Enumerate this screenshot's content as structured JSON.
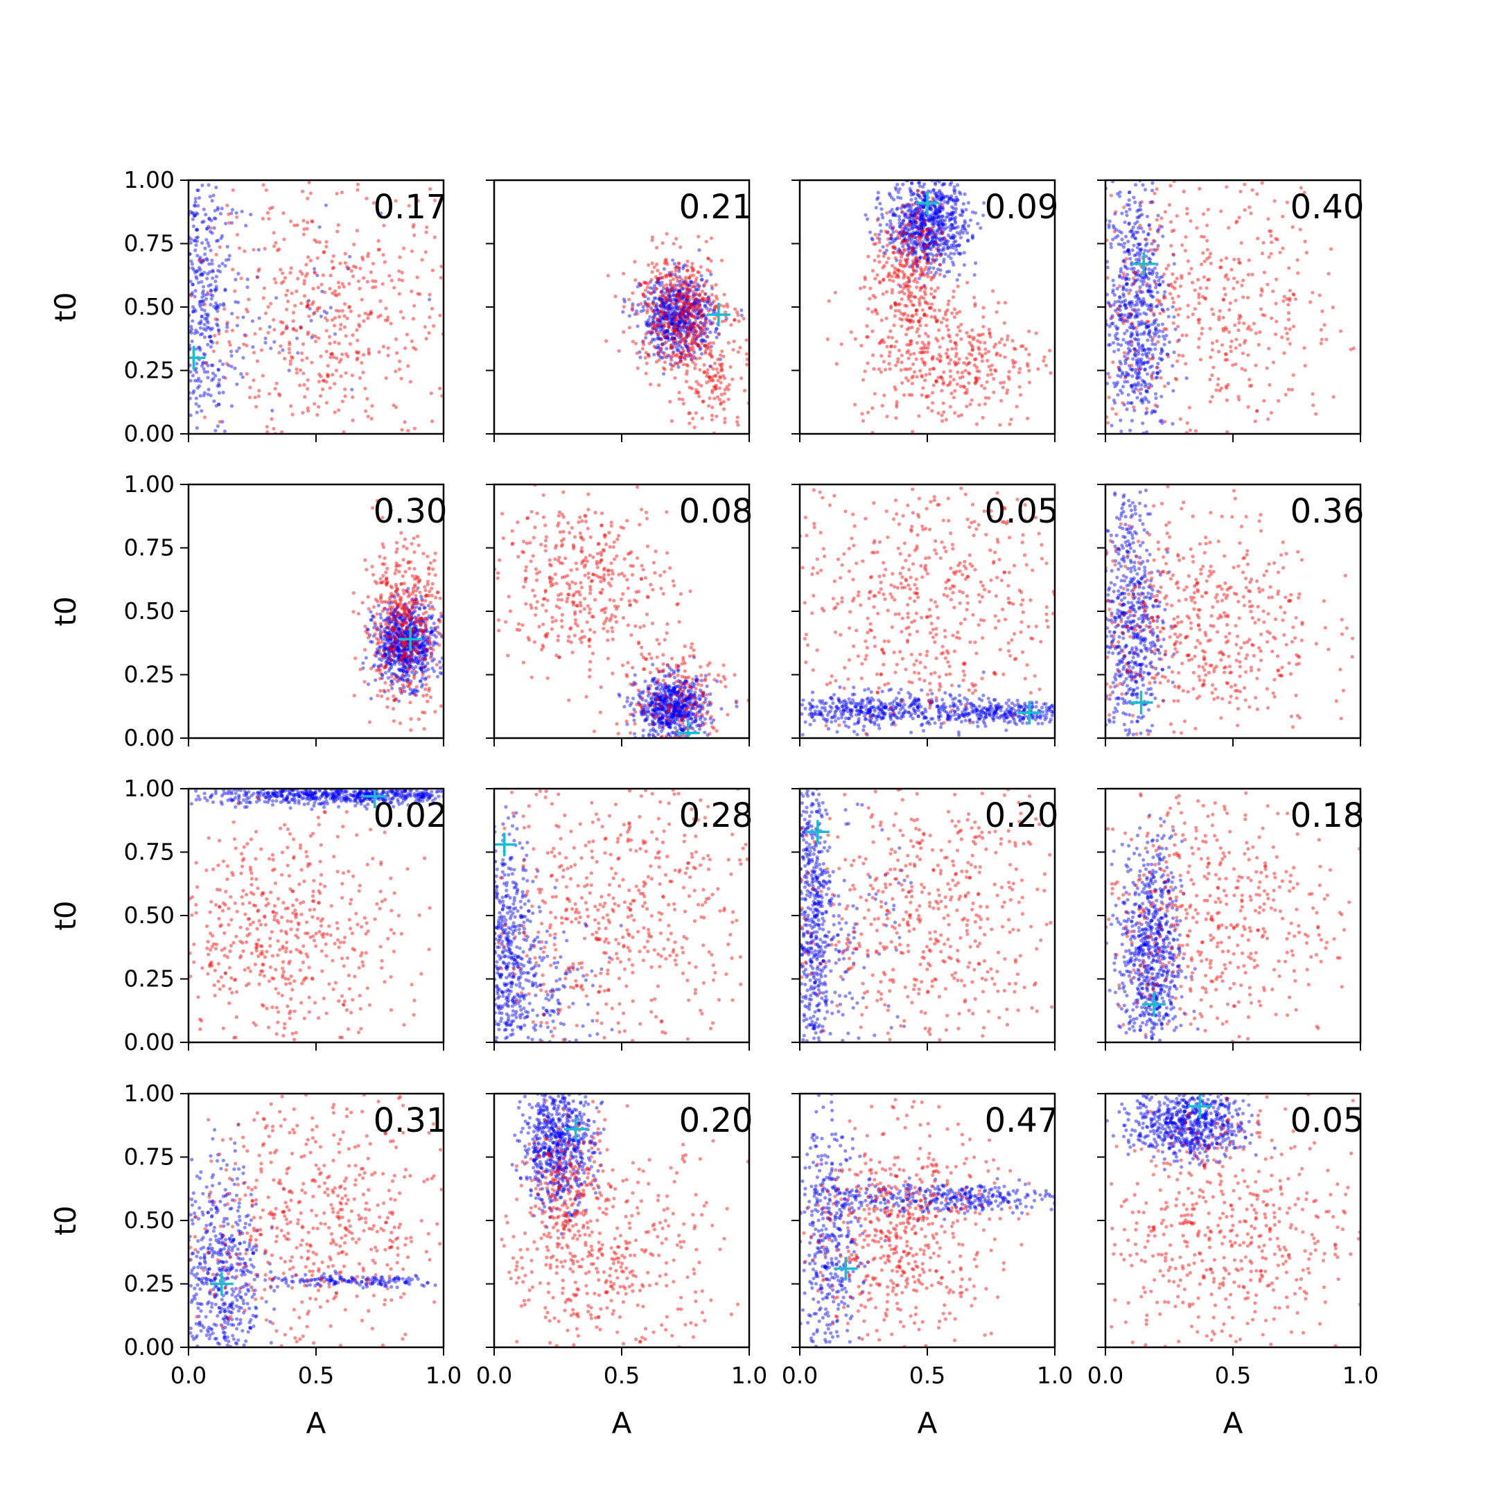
{
  "chart_data": {
    "type": "scatter",
    "layout": {
      "rows": 4,
      "cols": 4
    },
    "xlabel": "A",
    "ylabel": "t0",
    "xlim": [
      0,
      1
    ],
    "ylim": [
      0,
      1
    ],
    "x_ticks": [
      "0.0",
      "0.5",
      "1.0"
    ],
    "y_ticks": [
      "0.00",
      "0.25",
      "0.50",
      "0.75",
      "1.00"
    ],
    "x_tick_values": [
      0,
      0.5,
      1
    ],
    "y_tick_values": [
      0,
      0.25,
      0.5,
      0.75,
      1
    ],
    "colors": {
      "red_points": "#ff0000",
      "blue_points": "#0000ff",
      "marker": "#17becf",
      "axes": "#000000"
    },
    "panels": [
      {
        "label": "0.17",
        "marker": {
          "A": 0.02,
          "t0": 0.3
        },
        "blue": [
          {
            "cx": 0.05,
            "cy": 0.55,
            "sx": 0.06,
            "sy": 0.28,
            "n": 420
          },
          {
            "cx": 0.3,
            "cy": 0.45,
            "sx": 0.25,
            "sy": 0.25,
            "n": 60
          }
        ],
        "red": [
          {
            "cx": 0.55,
            "cy": 0.45,
            "sx": 0.26,
            "sy": 0.27,
            "n": 520
          }
        ]
      },
      {
        "label": "0.21",
        "marker": {
          "A": 0.88,
          "t0": 0.47
        },
        "blue": [
          {
            "cx": 0.72,
            "cy": 0.46,
            "sx": 0.07,
            "sy": 0.08,
            "n": 650
          }
        ],
        "red": [
          {
            "cx": 0.72,
            "cy": 0.48,
            "sx": 0.09,
            "sy": 0.12,
            "n": 450
          },
          {
            "cx": 0.88,
            "cy": 0.22,
            "sx": 0.08,
            "sy": 0.12,
            "n": 160
          }
        ]
      },
      {
        "label": "0.09",
        "marker": {
          "A": 0.5,
          "t0": 0.91
        },
        "blue": [
          {
            "cx": 0.5,
            "cy": 0.83,
            "sx": 0.08,
            "sy": 0.09,
            "n": 750
          }
        ],
        "red": [
          {
            "cx": 0.42,
            "cy": 0.62,
            "sx": 0.07,
            "sy": 0.14,
            "n": 300
          },
          {
            "cx": 0.58,
            "cy": 0.3,
            "sx": 0.18,
            "sy": 0.14,
            "n": 400
          }
        ]
      },
      {
        "label": "0.40",
        "marker": {
          "A": 0.15,
          "t0": 0.67
        },
        "blue": [
          {
            "cx": 0.12,
            "cy": 0.48,
            "sx": 0.06,
            "sy": 0.26,
            "n": 650
          }
        ],
        "red": [
          {
            "cx": 0.4,
            "cy": 0.5,
            "sx": 0.28,
            "sy": 0.28,
            "n": 500
          }
        ]
      },
      {
        "label": "0.30",
        "marker": {
          "A": 0.87,
          "t0": 0.39
        },
        "blue": [
          {
            "cx": 0.85,
            "cy": 0.37,
            "sx": 0.06,
            "sy": 0.08,
            "n": 750
          }
        ],
        "red": [
          {
            "cx": 0.84,
            "cy": 0.45,
            "sx": 0.08,
            "sy": 0.16,
            "n": 450
          }
        ]
      },
      {
        "label": "0.08",
        "marker": {
          "A": 0.76,
          "t0": 0.02
        },
        "blue": [
          {
            "cx": 0.7,
            "cy": 0.12,
            "sx": 0.07,
            "sy": 0.06,
            "n": 650
          }
        ],
        "red": [
          {
            "cx": 0.35,
            "cy": 0.62,
            "sx": 0.17,
            "sy": 0.16,
            "n": 400
          },
          {
            "cx": 0.7,
            "cy": 0.18,
            "sx": 0.12,
            "sy": 0.12,
            "n": 200
          }
        ]
      },
      {
        "label": "0.05",
        "marker": {
          "A": 0.9,
          "t0": 0.1
        },
        "blue": [
          {
            "cx": 0.3,
            "cy": 0.11,
            "sx": 0.22,
            "sy": 0.035,
            "n": 450
          },
          {
            "cx": 0.8,
            "cy": 0.1,
            "sx": 0.14,
            "sy": 0.02,
            "n": 250
          }
        ],
        "red": [
          {
            "cx": 0.5,
            "cy": 0.55,
            "sx": 0.27,
            "sy": 0.27,
            "n": 550
          }
        ]
      },
      {
        "label": "0.36",
        "marker": {
          "A": 0.14,
          "t0": 0.14
        },
        "blue": [
          {
            "cx": 0.1,
            "cy": 0.45,
            "sx": 0.06,
            "sy": 0.28,
            "n": 600
          }
        ],
        "red": [
          {
            "cx": 0.35,
            "cy": 0.45,
            "sx": 0.24,
            "sy": 0.22,
            "n": 550
          }
        ]
      },
      {
        "label": "0.02",
        "marker": {
          "A": 0.73,
          "t0": 0.97
        },
        "blue": [
          {
            "cx": 0.6,
            "cy": 0.975,
            "sx": 0.28,
            "sy": 0.02,
            "n": 650
          }
        ],
        "red": [
          {
            "cx": 0.38,
            "cy": 0.42,
            "sx": 0.22,
            "sy": 0.22,
            "n": 520
          }
        ]
      },
      {
        "label": "0.28",
        "marker": {
          "A": 0.04,
          "t0": 0.78
        },
        "blue": [
          {
            "cx": 0.05,
            "cy": 0.3,
            "sx": 0.05,
            "sy": 0.28,
            "n": 500
          },
          {
            "cx": 0.2,
            "cy": 0.2,
            "sx": 0.12,
            "sy": 0.15,
            "n": 150
          }
        ],
        "red": [
          {
            "cx": 0.5,
            "cy": 0.5,
            "sx": 0.28,
            "sy": 0.28,
            "n": 550
          }
        ]
      },
      {
        "label": "0.20",
        "marker": {
          "A": 0.07,
          "t0": 0.83
        },
        "blue": [
          {
            "cx": 0.05,
            "cy": 0.5,
            "sx": 0.04,
            "sy": 0.3,
            "n": 550
          },
          {
            "cx": 0.2,
            "cy": 0.35,
            "sx": 0.1,
            "sy": 0.25,
            "n": 100
          }
        ],
        "red": [
          {
            "cx": 0.5,
            "cy": 0.5,
            "sx": 0.27,
            "sy": 0.28,
            "n": 550
          }
        ]
      },
      {
        "label": "0.18",
        "marker": {
          "A": 0.19,
          "t0": 0.15
        },
        "blue": [
          {
            "cx": 0.18,
            "cy": 0.35,
            "sx": 0.06,
            "sy": 0.22,
            "n": 700
          }
        ],
        "red": [
          {
            "cx": 0.4,
            "cy": 0.5,
            "sx": 0.25,
            "sy": 0.26,
            "n": 500
          }
        ]
      },
      {
        "label": "0.31",
        "marker": {
          "A": 0.13,
          "t0": 0.25
        },
        "blue": [
          {
            "cx": 0.13,
            "cy": 0.28,
            "sx": 0.08,
            "sy": 0.22,
            "n": 550
          },
          {
            "cx": 0.65,
            "cy": 0.26,
            "sx": 0.18,
            "sy": 0.012,
            "n": 150
          }
        ],
        "red": [
          {
            "cx": 0.5,
            "cy": 0.5,
            "sx": 0.26,
            "sy": 0.27,
            "n": 550
          }
        ]
      },
      {
        "label": "0.20",
        "marker": {
          "A": 0.32,
          "t0": 0.86
        },
        "blue": [
          {
            "cx": 0.25,
            "cy": 0.8,
            "sx": 0.07,
            "sy": 0.12,
            "n": 650
          }
        ],
        "red": [
          {
            "cx": 0.28,
            "cy": 0.6,
            "sx": 0.08,
            "sy": 0.15,
            "n": 200
          },
          {
            "cx": 0.45,
            "cy": 0.35,
            "sx": 0.22,
            "sy": 0.22,
            "n": 400
          }
        ]
      },
      {
        "label": "0.47",
        "marker": {
          "A": 0.18,
          "t0": 0.31
        },
        "blue": [
          {
            "cx": 0.12,
            "cy": 0.4,
            "sx": 0.06,
            "sy": 0.25,
            "n": 400
          },
          {
            "cx": 0.55,
            "cy": 0.59,
            "sx": 0.25,
            "sy": 0.03,
            "n": 350
          }
        ],
        "red": [
          {
            "cx": 0.4,
            "cy": 0.45,
            "sx": 0.18,
            "sy": 0.22,
            "n": 550
          }
        ]
      },
      {
        "label": "0.05",
        "marker": {
          "A": 0.37,
          "t0": 0.95
        },
        "blue": [
          {
            "cx": 0.33,
            "cy": 0.88,
            "sx": 0.11,
            "sy": 0.07,
            "n": 650
          }
        ],
        "red": [
          {
            "cx": 0.45,
            "cy": 0.45,
            "sx": 0.26,
            "sy": 0.26,
            "n": 550
          }
        ]
      }
    ]
  }
}
